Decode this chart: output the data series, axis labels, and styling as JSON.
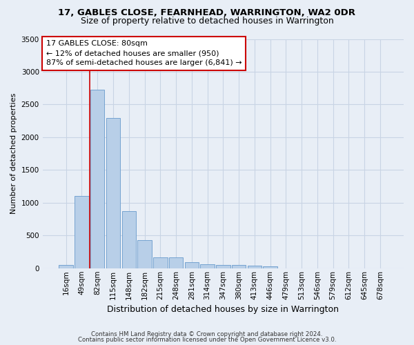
{
  "title_line1": "17, GABLES CLOSE, FEARNHEAD, WARRINGTON, WA2 0DR",
  "title_line2": "Size of property relative to detached houses in Warrington",
  "xlabel": "Distribution of detached houses by size in Warrington",
  "ylabel": "Number of detached properties",
  "footer_line1": "Contains HM Land Registry data © Crown copyright and database right 2024.",
  "footer_line2": "Contains public sector information licensed under the Open Government Licence v3.0.",
  "categories": [
    "16sqm",
    "49sqm",
    "82sqm",
    "115sqm",
    "148sqm",
    "182sqm",
    "215sqm",
    "248sqm",
    "281sqm",
    "314sqm",
    "347sqm",
    "380sqm",
    "413sqm",
    "446sqm",
    "479sqm",
    "513sqm",
    "546sqm",
    "579sqm",
    "612sqm",
    "645sqm",
    "678sqm"
  ],
  "values": [
    55,
    1100,
    2730,
    2290,
    870,
    430,
    170,
    165,
    90,
    65,
    55,
    50,
    35,
    25,
    0,
    0,
    0,
    0,
    0,
    0,
    0
  ],
  "bar_color": "#b8cfe8",
  "bar_edge_color": "#6699cc",
  "grid_color": "#c8d4e4",
  "background_color": "#e8eef6",
  "annotation_text_line1": "17 GABLES CLOSE: 80sqm",
  "annotation_text_line2": "← 12% of detached houses are smaller (950)",
  "annotation_text_line3": "87% of semi-detached houses are larger (6,841) →",
  "vline_color": "#cc0000",
  "vline_x": 1.5,
  "ylim": [
    0,
    3500
  ],
  "yticks": [
    0,
    500,
    1000,
    1500,
    2000,
    2500,
    3000,
    3500
  ],
  "title1_fontsize": 9.5,
  "title2_fontsize": 9,
  "xlabel_fontsize": 9,
  "ylabel_fontsize": 8,
  "tick_fontsize": 7.5,
  "annot_fontsize": 8
}
